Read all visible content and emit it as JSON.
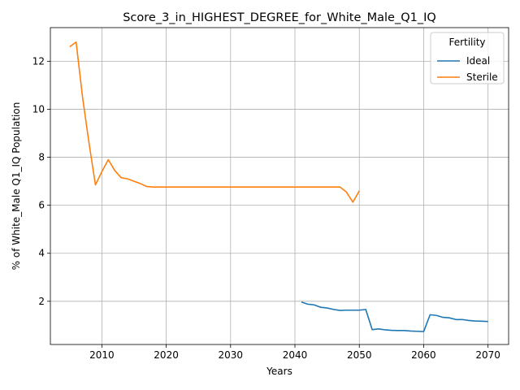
{
  "chart_data": {
    "type": "line",
    "title": "Score_3_in_HIGHEST_DEGREE_for_White_Male_Q1_IQ",
    "xlabel": "Years",
    "ylabel": "% of White_Male Q1_IQ Population",
    "xlim": [
      2002,
      2073.2
    ],
    "ylim": [
      0.2,
      13.4
    ],
    "xticks": [
      2010,
      2020,
      2030,
      2040,
      2050,
      2060,
      2070
    ],
    "yticks": [
      2,
      4,
      6,
      8,
      10,
      12
    ],
    "grid": true,
    "legend": {
      "title": "Fertility",
      "position": "top-right"
    },
    "series": [
      {
        "name": "Ideal",
        "color": "#1f77b4",
        "x": [
          2041,
          2042,
          2043,
          2044,
          2045,
          2046,
          2047,
          2048,
          2049,
          2050,
          2051,
          2052,
          2053,
          2054,
          2055,
          2056,
          2057,
          2058,
          2059,
          2060,
          2061,
          2062,
          2063,
          2064,
          2065,
          2066,
          2067,
          2068,
          2069,
          2070
        ],
        "y": [
          1.97,
          1.88,
          1.85,
          1.75,
          1.72,
          1.66,
          1.62,
          1.63,
          1.63,
          1.63,
          1.66,
          0.82,
          0.85,
          0.81,
          0.79,
          0.78,
          0.78,
          0.76,
          0.75,
          0.74,
          1.44,
          1.41,
          1.33,
          1.31,
          1.24,
          1.24,
          1.2,
          1.18,
          1.17,
          1.16
        ]
      },
      {
        "name": "Sterile",
        "color": "#ff7f0e",
        "x": [
          2005,
          2006,
          2007,
          2008,
          2009,
          2010,
          2011,
          2012,
          2013,
          2014,
          2015,
          2016,
          2017,
          2018,
          2019,
          2020,
          2025,
          2030,
          2035,
          2040,
          2045,
          2047,
          2048,
          2049,
          2050
        ],
        "y": [
          12.6,
          12.8,
          10.5,
          8.6,
          6.85,
          7.4,
          7.9,
          7.45,
          7.15,
          7.1,
          7.0,
          6.9,
          6.78,
          6.76,
          6.76,
          6.76,
          6.76,
          6.76,
          6.76,
          6.76,
          6.76,
          6.76,
          6.55,
          6.13,
          6.6
        ]
      }
    ]
  }
}
